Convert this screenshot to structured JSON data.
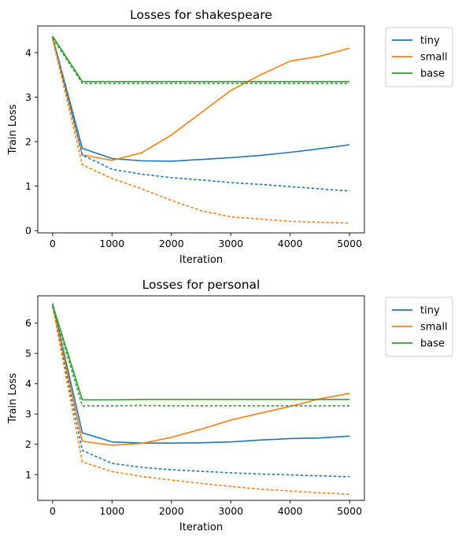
{
  "chart_data": [
    {
      "type": "line",
      "title": "Losses for shakespeare",
      "xlabel": "Iteration",
      "ylabel": "Train Loss",
      "xlim": [
        -250,
        5250
      ],
      "ylim": [
        -0.05,
        4.6
      ],
      "xticks": [
        0,
        1000,
        2000,
        3000,
        4000,
        5000
      ],
      "yticks": [
        0,
        1,
        2,
        3,
        4
      ],
      "grid": false,
      "legend_position": "outside-right",
      "series": [
        {
          "name": "tiny",
          "style": "solid",
          "color": "#1f77b4",
          "x": [
            0,
            500,
            1000,
            1500,
            2000,
            2500,
            3000,
            3500,
            4000,
            4500,
            5000
          ],
          "y": [
            4.35,
            1.85,
            1.62,
            1.57,
            1.56,
            1.6,
            1.64,
            1.69,
            1.76,
            1.84,
            1.93
          ]
        },
        {
          "name": "small",
          "style": "solid",
          "color": "#ff7f0e",
          "x": [
            0,
            500,
            1000,
            1500,
            2000,
            2500,
            3000,
            3500,
            4000,
            4500,
            5000
          ],
          "y": [
            4.35,
            1.7,
            1.58,
            1.75,
            2.15,
            2.65,
            3.15,
            3.5,
            3.81,
            3.92,
            4.1
          ]
        },
        {
          "name": "base",
          "style": "solid",
          "color": "#2ca02c",
          "x": [
            0,
            500,
            1000,
            2000,
            3000,
            4000,
            5000
          ],
          "y": [
            4.37,
            3.35,
            3.35,
            3.35,
            3.35,
            3.35,
            3.35
          ]
        },
        {
          "style": "dashed",
          "color": "#1f77b4",
          "x": [
            0,
            500,
            1000,
            1500,
            2000,
            2500,
            3000,
            3500,
            4000,
            4500,
            5000
          ],
          "y": [
            4.33,
            1.7,
            1.38,
            1.27,
            1.19,
            1.14,
            1.08,
            1.04,
            0.99,
            0.94,
            0.89
          ]
        },
        {
          "style": "dashed",
          "color": "#ff7f0e",
          "x": [
            0,
            500,
            1000,
            1500,
            2000,
            2500,
            3000,
            3500,
            4000,
            4500,
            5000
          ],
          "y": [
            4.3,
            1.48,
            1.17,
            0.94,
            0.68,
            0.45,
            0.31,
            0.26,
            0.21,
            0.19,
            0.17
          ]
        },
        {
          "style": "dashed",
          "color": "#2ca02c",
          "x": [
            0,
            500,
            1000,
            2000,
            3000,
            4000,
            5000
          ],
          "y": [
            4.33,
            3.31,
            3.31,
            3.31,
            3.31,
            3.31,
            3.31
          ]
        }
      ]
    },
    {
      "type": "line",
      "title": "Losses for personal",
      "xlabel": "Iteration",
      "ylabel": "Train Loss",
      "xlim": [
        -250,
        5250
      ],
      "ylim": [
        0.15,
        6.9
      ],
      "xticks": [
        0,
        1000,
        2000,
        3000,
        4000,
        5000
      ],
      "yticks": [
        1,
        2,
        3,
        4,
        5,
        6
      ],
      "grid": false,
      "legend_position": "outside-right",
      "series": [
        {
          "name": "tiny",
          "style": "solid",
          "color": "#1f77b4",
          "x": [
            0,
            500,
            1000,
            1500,
            2000,
            2500,
            3000,
            3500,
            4000,
            4500,
            5000
          ],
          "y": [
            6.65,
            2.38,
            2.08,
            2.04,
            2.04,
            2.05,
            2.08,
            2.14,
            2.19,
            2.21,
            2.27
          ]
        },
        {
          "name": "small",
          "style": "solid",
          "color": "#ff7f0e",
          "x": [
            0,
            500,
            1000,
            1500,
            2000,
            2500,
            3000,
            3500,
            4000,
            4500,
            5000
          ],
          "y": [
            6.6,
            2.1,
            1.97,
            2.03,
            2.23,
            2.5,
            2.8,
            3.03,
            3.25,
            3.5,
            3.68
          ]
        },
        {
          "name": "base",
          "style": "solid",
          "color": "#2ca02c",
          "x": [
            0,
            500,
            1000,
            1500,
            2000,
            3000,
            4000,
            5000
          ],
          "y": [
            6.6,
            3.47,
            3.47,
            3.48,
            3.48,
            3.48,
            3.48,
            3.48
          ]
        },
        {
          "style": "dashed",
          "color": "#1f77b4",
          "x": [
            0,
            500,
            1000,
            1500,
            2000,
            2500,
            3000,
            3500,
            4000,
            4500,
            5000
          ],
          "y": [
            6.55,
            1.8,
            1.37,
            1.24,
            1.16,
            1.11,
            1.06,
            1.02,
            0.99,
            0.96,
            0.93
          ]
        },
        {
          "style": "dashed",
          "color": "#ff7f0e",
          "x": [
            0,
            500,
            1000,
            1500,
            2000,
            2500,
            3000,
            3500,
            4000,
            4500,
            5000
          ],
          "y": [
            6.55,
            1.42,
            1.1,
            0.94,
            0.82,
            0.71,
            0.61,
            0.52,
            0.46,
            0.4,
            0.35
          ]
        },
        {
          "style": "dashed",
          "color": "#2ca02c",
          "x": [
            0,
            500,
            1000,
            1500,
            2000,
            3000,
            4000,
            5000
          ],
          "y": [
            6.55,
            3.27,
            3.27,
            3.28,
            3.27,
            3.27,
            3.27,
            3.27
          ]
        }
      ]
    }
  ]
}
